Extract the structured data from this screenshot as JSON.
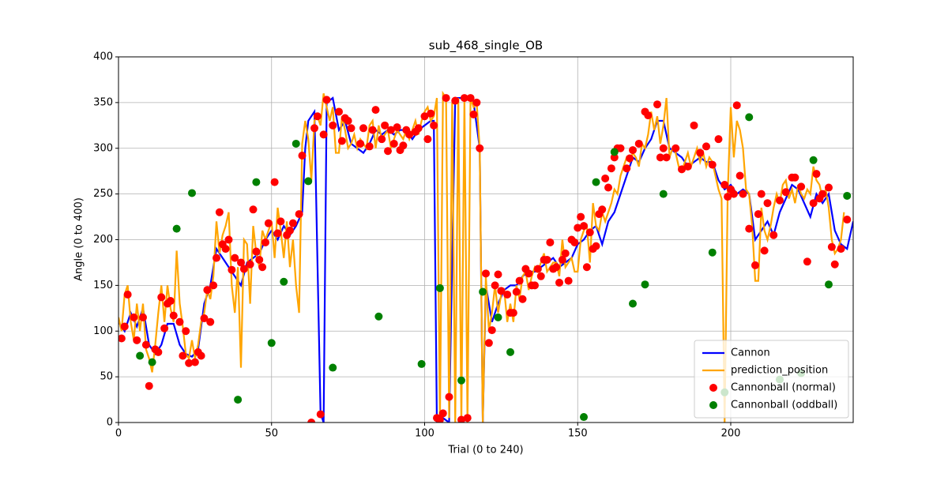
{
  "chart_data": {
    "type": "line",
    "title": "sub_468_single_OB",
    "x_label": "Trial (0 to 240)",
    "y_label": "Angle (0 to 400)",
    "xlim": [
      0,
      240
    ],
    "ylim": [
      0,
      400
    ],
    "xticks": [
      0,
      50,
      100,
      150,
      200
    ],
    "yticks": [
      0,
      50,
      100,
      150,
      200,
      250,
      300,
      350,
      400
    ],
    "grid": true,
    "legend": "lower right",
    "series": [
      {
        "name": "Cannon",
        "type": "line",
        "color": "#0000ff",
        "x": [
          0,
          2,
          4,
          6,
          8,
          10,
          12,
          14,
          16,
          18,
          20,
          22,
          24,
          26,
          28,
          30,
          32,
          34,
          36,
          38,
          40,
          42,
          44,
          46,
          48,
          50,
          52,
          54,
          56,
          58,
          60,
          61,
          62,
          64,
          66,
          67,
          68,
          70,
          72,
          74,
          76,
          78,
          80,
          82,
          84,
          86,
          88,
          90,
          92,
          94,
          96,
          98,
          100,
          102,
          103,
          104,
          106,
          108,
          110,
          112,
          114,
          116,
          118,
          119,
          120,
          122,
          124,
          126,
          128,
          130,
          132,
          134,
          136,
          138,
          140,
          142,
          144,
          146,
          148,
          150,
          152,
          154,
          156,
          158,
          160,
          162,
          164,
          166,
          168,
          170,
          172,
          174,
          176,
          178,
          180,
          182,
          184,
          186,
          188,
          190,
          192,
          194,
          196,
          198,
          200,
          202,
          204,
          206,
          208,
          210,
          212,
          214,
          216,
          218,
          220,
          222,
          224,
          226,
          228,
          230,
          232,
          234,
          236,
          238,
          240
        ],
        "values": [
          110,
          100,
          120,
          105,
          125,
          85,
          75,
          85,
          108,
          108,
          85,
          75,
          72,
          80,
          130,
          150,
          190,
          180,
          170,
          160,
          150,
          175,
          180,
          185,
          200,
          210,
          200,
          215,
          205,
          215,
          230,
          300,
          330,
          340,
          10,
          0,
          350,
          355,
          320,
          330,
          305,
          300,
          295,
          305,
          320,
          315,
          320,
          315,
          320,
          320,
          310,
          320,
          325,
          330,
          330,
          0,
          5,
          0,
          355,
          355,
          355,
          350,
          300,
          0,
          150,
          110,
          130,
          145,
          150,
          150,
          160,
          165,
          165,
          170,
          175,
          180,
          170,
          175,
          180,
          195,
          200,
          210,
          215,
          195,
          220,
          230,
          250,
          270,
          290,
          285,
          300,
          310,
          330,
          330,
          300,
          295,
          290,
          280,
          285,
          290,
          285,
          285,
          265,
          255,
          260,
          250,
          255,
          250,
          200,
          210,
          220,
          205,
          230,
          245,
          260,
          255,
          240,
          225,
          250,
          240,
          250,
          210,
          195,
          190,
          220
        ]
      },
      {
        "name": "prediction_position",
        "type": "line",
        "color": "#ffa500",
        "x": [
          0,
          1,
          2,
          3,
          4,
          5,
          6,
          7,
          8,
          9,
          10,
          11,
          12,
          13,
          14,
          15,
          16,
          17,
          18,
          19,
          20,
          21,
          22,
          23,
          24,
          25,
          26,
          27,
          28,
          29,
          30,
          31,
          32,
          33,
          34,
          35,
          36,
          37,
          38,
          39,
          40,
          41,
          42,
          43,
          44,
          45,
          46,
          47,
          48,
          49,
          50,
          51,
          52,
          53,
          54,
          55,
          56,
          57,
          58,
          59,
          60,
          61,
          62,
          63,
          64,
          65,
          66,
          67,
          68,
          69,
          70,
          71,
          72,
          73,
          74,
          75,
          76,
          77,
          78,
          79,
          80,
          81,
          82,
          83,
          84,
          85,
          86,
          87,
          88,
          89,
          90,
          91,
          92,
          93,
          94,
          95,
          96,
          97,
          98,
          99,
          100,
          101,
          102,
          103,
          104,
          105,
          106,
          107,
          108,
          109,
          110,
          111,
          112,
          113,
          114,
          115,
          116,
          117,
          118,
          119,
          120,
          121,
          122,
          123,
          124,
          125,
          126,
          127,
          128,
          129,
          130,
          131,
          132,
          133,
          134,
          135,
          136,
          137,
          138,
          139,
          140,
          141,
          142,
          143,
          144,
          145,
          146,
          147,
          148,
          149,
          150,
          151,
          152,
          153,
          154,
          155,
          156,
          157,
          158,
          159,
          160,
          161,
          162,
          163,
          164,
          165,
          166,
          167,
          168,
          169,
          170,
          171,
          172,
          173,
          174,
          175,
          176,
          177,
          178,
          179,
          180,
          181,
          182,
          183,
          184,
          185,
          186,
          187,
          188,
          189,
          190,
          191,
          192,
          193,
          194,
          195,
          196,
          197,
          198,
          199,
          200,
          201,
          202,
          203,
          204,
          205,
          206,
          207,
          208,
          209,
          210,
          211,
          212,
          213,
          214,
          215,
          216,
          217,
          218,
          219,
          220,
          221,
          222,
          223,
          224,
          225,
          226,
          227,
          228,
          229,
          230,
          231,
          232,
          233,
          234,
          235,
          236,
          237
        ],
        "values": [
          115,
          100,
          140,
          150,
          110,
          90,
          130,
          100,
          130,
          80,
          70,
          55,
          85,
          120,
          150,
          110,
          150,
          125,
          110,
          188,
          130,
          105,
          75,
          70,
          90,
          70,
          85,
          110,
          120,
          145,
          135,
          160,
          220,
          185,
          205,
          215,
          230,
          150,
          120,
          170,
          60,
          200,
          195,
          130,
          215,
          185,
          170,
          210,
          200,
          210,
          220,
          180,
          235,
          210,
          180,
          220,
          170,
          200,
          150,
          120,
          305,
          330,
          310,
          265,
          330,
          335,
          325,
          360,
          345,
          330,
          345,
          295,
          295,
          335,
          320,
          300,
          305,
          315,
          300,
          310,
          305,
          300,
          325,
          330,
          300,
          325,
          310,
          315,
          320,
          300,
          310,
          320,
          315,
          310,
          320,
          310,
          320,
          330,
          315,
          330,
          340,
          345,
          330,
          335,
          355,
          0,
          360,
          355,
          5,
          350,
          0,
          355,
          0,
          355,
          0,
          355,
          345,
          350,
          300,
          0,
          160,
          100,
          120,
          150,
          120,
          140,
          145,
          110,
          130,
          110,
          150,
          135,
          160,
          165,
          145,
          160,
          170,
          165,
          175,
          185,
          165,
          170,
          175,
          175,
          160,
          200,
          170,
          175,
          180,
          165,
          165,
          200,
          210,
          215,
          175,
          240,
          215,
          210,
          230,
          220,
          230,
          240,
          255,
          250,
          270,
          280,
          290,
          285,
          295,
          290,
          280,
          305,
          300,
          315,
          340,
          320,
          335,
          305,
          325,
          355,
          290,
          300,
          295,
          280,
          275,
          285,
          295,
          280,
          290,
          300,
          285,
          295,
          280,
          290,
          285,
          270,
          255,
          245,
          0,
          250,
          345,
          290,
          330,
          320,
          300,
          255,
          250,
          215,
          155,
          155,
          235,
          210,
          200,
          215,
          235,
          250,
          240,
          260,
          265,
          245,
          255,
          240,
          260,
          250,
          245,
          255,
          250,
          280,
          265,
          260,
          245,
          255,
          235,
          200,
          185,
          190,
          200,
          230
        ]
      },
      {
        "name": "Cannonball (normal)",
        "type": "scatter",
        "color": "#ff0000",
        "x": [
          1,
          2,
          3,
          5,
          6,
          8,
          9,
          10,
          12,
          13,
          14,
          15,
          16,
          17,
          18,
          20,
          21,
          22,
          23,
          25,
          26,
          27,
          28,
          29,
          30,
          31,
          32,
          33,
          34,
          35,
          36,
          37,
          38,
          40,
          41,
          43,
          44,
          45,
          46,
          47,
          48,
          49,
          51,
          52,
          53,
          55,
          56,
          57,
          59,
          60,
          63,
          64,
          65,
          66,
          67,
          68,
          70,
          72,
          73,
          74,
          75,
          76,
          79,
          80,
          82,
          83,
          84,
          86,
          87,
          88,
          89,
          90,
          91,
          92,
          93,
          94,
          95,
          97,
          98,
          100,
          101,
          102,
          103,
          104,
          105,
          106,
          107,
          108,
          110,
          112,
          113,
          114,
          115,
          116,
          117,
          118,
          120,
          121,
          122,
          123,
          124,
          125,
          127,
          128,
          129,
          130,
          131,
          132,
          133,
          134,
          135,
          136,
          137,
          138,
          139,
          140,
          141,
          142,
          143,
          144,
          145,
          146,
          147,
          148,
          149,
          150,
          151,
          152,
          153,
          154,
          155,
          156,
          157,
          158,
          159,
          160,
          161,
          162,
          163,
          164,
          166,
          167,
          168,
          170,
          172,
          173,
          176,
          177,
          178,
          179,
          182,
          184,
          186,
          188,
          190,
          192,
          194,
          196,
          198,
          199,
          200,
          201,
          202,
          203,
          204,
          206,
          208,
          209,
          210,
          211,
          212,
          214,
          216,
          218,
          220,
          221,
          223,
          225,
          227,
          228,
          229,
          230,
          232,
          233,
          234,
          236,
          238
        ],
        "values": [
          92,
          105,
          140,
          115,
          90,
          115,
          85,
          40,
          80,
          77,
          137,
          103,
          130,
          133,
          117,
          110,
          73,
          100,
          65,
          66,
          77,
          73,
          114,
          145,
          110,
          150,
          180,
          230,
          195,
          190,
          200,
          167,
          180,
          175,
          168,
          173,
          233,
          187,
          178,
          170,
          197,
          218,
          263,
          207,
          220,
          205,
          210,
          218,
          228,
          292,
          0,
          322,
          335,
          9,
          315,
          353,
          325,
          340,
          308,
          333,
          330,
          322,
          305,
          322,
          302,
          320,
          342,
          310,
          325,
          297,
          320,
          305,
          323,
          298,
          303,
          320,
          315,
          318,
          322,
          335,
          310,
          338,
          325,
          5,
          3,
          10,
          355,
          28,
          352,
          3,
          355,
          5,
          355,
          337,
          350,
          300,
          163,
          87,
          101,
          150,
          162,
          144,
          140,
          120,
          120,
          143,
          155,
          135,
          168,
          163,
          150,
          150,
          168,
          160,
          178,
          178,
          197,
          168,
          170,
          153,
          178,
          185,
          155,
          200,
          197,
          213,
          225,
          215,
          170,
          208,
          190,
          193,
          228,
          233,
          267,
          257,
          278,
          290,
          300,
          300,
          278,
          289,
          298,
          305,
          340,
          336,
          348,
          290,
          300,
          290,
          300,
          277,
          280,
          325,
          295,
          302,
          282,
          310,
          260,
          247,
          255,
          250,
          347,
          270,
          250,
          212,
          172,
          228,
          250,
          188,
          240,
          205,
          243,
          252,
          268,
          268,
          258,
          176,
          240,
          272,
          245,
          250,
          257,
          192,
          173,
          190,
          222
        ]
      },
      {
        "name": "Cannonball (oddball)",
        "type": "scatter",
        "color": "#008000",
        "x": [
          7,
          11,
          19,
          24,
          39,
          45,
          50,
          54,
          58,
          62,
          70,
          85,
          99,
          105,
          112,
          119,
          124,
          128,
          152,
          156,
          162,
          168,
          172,
          178,
          194,
          198,
          206,
          216,
          223,
          227,
          232,
          238
        ],
        "values": [
          73,
          66,
          212,
          251,
          25,
          263,
          87,
          154,
          305,
          264,
          60,
          116,
          64,
          147,
          46,
          143,
          115,
          77,
          6,
          263,
          296,
          130,
          151,
          250,
          186,
          33,
          334,
          47,
          54,
          287,
          151,
          248
        ]
      }
    ]
  }
}
